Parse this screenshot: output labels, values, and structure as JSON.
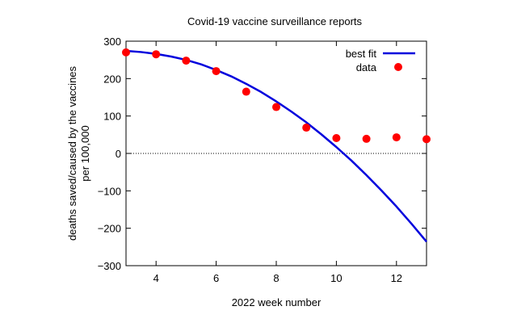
{
  "chart_data": {
    "type": "scatter",
    "title": "Covid-19 vaccine surveillance reports",
    "xlabel": "2022 week number",
    "ylabel_lines": [
      "deaths saved/caused by the vaccines",
      "per 100,000"
    ],
    "xlim": [
      3,
      13
    ],
    "ylim": [
      -300,
      300
    ],
    "x_ticks": [
      4,
      6,
      8,
      10,
      12
    ],
    "y_ticks": [
      -300,
      -200,
      -100,
      0,
      100,
      200,
      300
    ],
    "grid": false,
    "zero_line": true,
    "legend_position": "top-right",
    "series": [
      {
        "name": "best fit",
        "kind": "line",
        "color": "#0000dd",
        "x": [
          3,
          3.5,
          4,
          4.5,
          5,
          5.5,
          6,
          6.5,
          7,
          7.5,
          8,
          8.5,
          9,
          9.5,
          10,
          10.5,
          11,
          11.5,
          12,
          12.5,
          13
        ],
        "y": [
          274,
          271,
          266,
          259,
          250,
          238,
          223,
          206,
          186,
          164,
          139,
          112,
          83,
          51,
          17,
          -19,
          -58,
          -99,
          -142,
          -188,
          -236
        ]
      },
      {
        "name": "data",
        "kind": "points",
        "color": "#ff0000",
        "x": [
          3,
          4,
          5,
          6,
          7,
          8,
          9,
          10,
          11,
          12,
          13
        ],
        "y": [
          270,
          265,
          248,
          220,
          165,
          124,
          69,
          41,
          39,
          43,
          38
        ]
      }
    ]
  }
}
